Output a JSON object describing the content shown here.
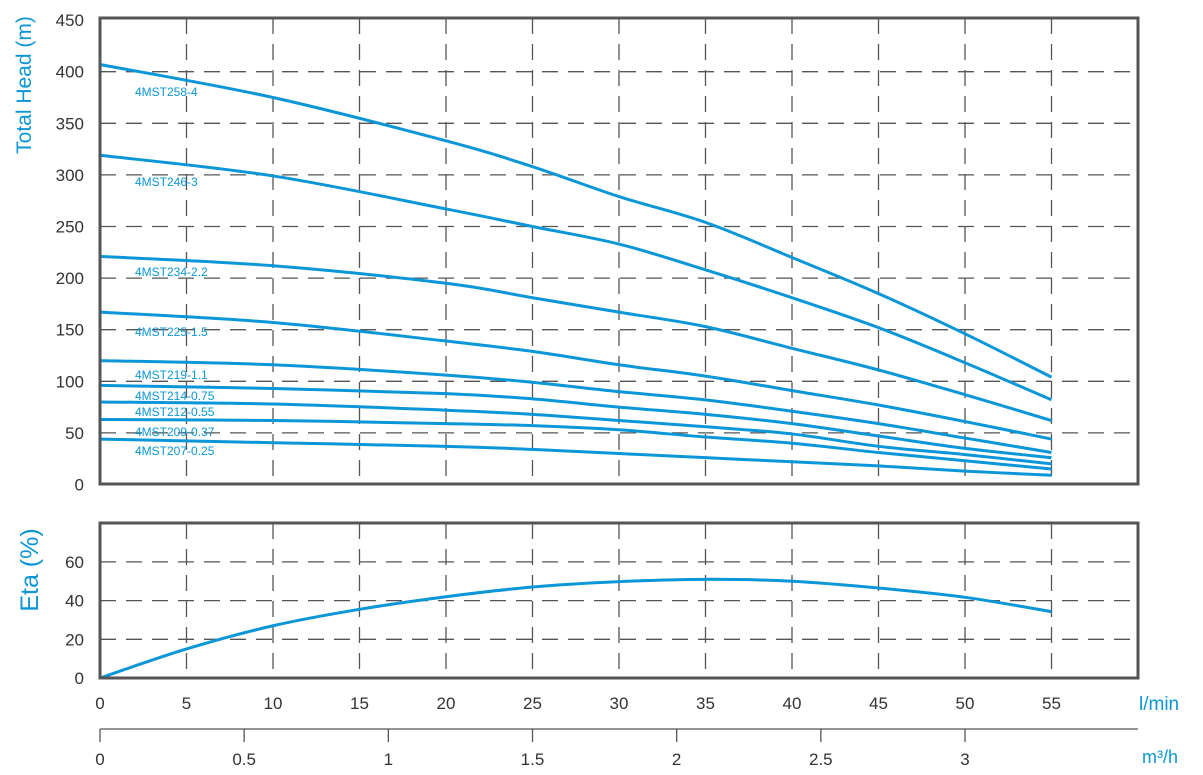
{
  "chart_data": [
    {
      "type": "line",
      "title": "",
      "ylabel": "Total Head (m)",
      "xlabel": "l/min",
      "xlim": [
        0,
        60
      ],
      "ylim": [
        0,
        450
      ],
      "yticks": [
        0,
        50,
        100,
        150,
        200,
        250,
        300,
        350,
        400,
        450
      ],
      "xgrid": [
        0,
        5,
        10,
        15,
        20,
        25,
        30,
        35,
        40,
        45,
        50,
        55,
        60
      ],
      "grid": true,
      "x": [
        0,
        10,
        20,
        25,
        30,
        35,
        40,
        45,
        50,
        55
      ],
      "series": [
        {
          "name": "4MST258-4",
          "values": [
            407,
            375,
            333,
            308,
            279,
            254,
            220,
            185,
            146,
            104
          ]
        },
        {
          "name": "4MST246-3",
          "values": [
            319,
            299,
            267,
            250,
            233,
            208,
            181,
            152,
            118,
            82
          ]
        },
        {
          "name": "4MST234-2.2",
          "values": [
            221,
            212,
            195,
            181,
            167,
            153,
            132,
            111,
            87,
            62
          ]
        },
        {
          "name": "4MST225-1.5",
          "values": [
            167,
            157,
            139,
            129,
            116,
            105,
            91,
            77,
            61,
            44
          ]
        },
        {
          "name": "4MST219-1.1",
          "values": [
            120,
            116,
            106,
            99,
            90,
            82,
            71,
            59,
            45,
            31
          ]
        },
        {
          "name": "4MST214-0.75",
          "values": [
            96,
            93,
            88,
            83,
            75,
            68,
            59,
            47,
            35,
            26
          ]
        },
        {
          "name": "4MST212-0.55",
          "values": [
            80,
            78,
            72,
            68,
            62,
            56,
            49,
            37,
            29,
            20
          ]
        },
        {
          "name": "4MST209-0.37",
          "values": [
            63,
            62,
            59,
            57,
            53,
            46,
            40,
            31,
            23,
            15
          ]
        },
        {
          "name": "4MST207-0.25",
          "values": [
            44,
            40.5,
            37,
            34,
            30,
            26,
            22,
            18,
            13,
            9
          ]
        }
      ]
    },
    {
      "type": "line",
      "ylabel": "Eta (%)",
      "xlabel": "l/min",
      "xlim": [
        0,
        60
      ],
      "ylim": [
        0,
        80
      ],
      "yticks": [
        0,
        20,
        40,
        60
      ],
      "grid": true,
      "x": [
        0,
        5,
        10,
        15,
        20,
        25,
        30,
        35,
        40,
        45,
        50,
        55
      ],
      "series": [
        {
          "name": "Eta",
          "values": [
            0,
            15,
            27,
            35.5,
            42,
            47,
            49.8,
            51,
            50,
            46.5,
            41.7,
            34.3
          ]
        }
      ],
      "xticks": [
        "0",
        "5",
        "10",
        "15",
        "20",
        "25",
        "30",
        "35",
        "40",
        "45",
        "50",
        "55"
      ],
      "x2label": "m³/h",
      "x2ticks": [
        {
          "label": "0",
          "value": 0
        },
        {
          "label": "0.5",
          "value": 0.5
        },
        {
          "label": "1",
          "value": 1
        },
        {
          "label": "1.5",
          "value": 1.5
        },
        {
          "label": "2",
          "value": 2
        },
        {
          "label": "2.5",
          "value": 2.5
        },
        {
          "label": "3",
          "value": 3
        }
      ]
    }
  ],
  "colors": {
    "curve": "#0a96d8",
    "frame": "#555555",
    "grid": "#555555",
    "text": "#333333"
  }
}
